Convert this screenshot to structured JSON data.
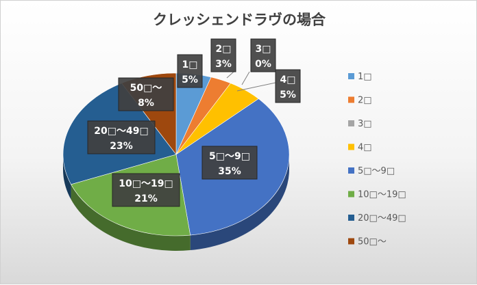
{
  "title": "クレッシェンドラヴの場合",
  "chart_data": {
    "type": "pie",
    "title": "クレッシェンドラヴの場合",
    "categories": [
      "1□",
      "2□",
      "3□",
      "4□",
      "5□～9□",
      "10□～19□",
      "20□～49□",
      "50□～"
    ],
    "values": [
      5,
      3,
      0,
      5,
      35,
      21,
      23,
      8
    ],
    "value_labels": [
      "5%",
      "3%",
      "0%",
      "5%",
      "35%",
      "21%",
      "23%",
      "8%"
    ],
    "colors": [
      "#5B9BD5",
      "#ED7D31",
      "#A5A5A5",
      "#FFC000",
      "#4472C4",
      "#70AD47",
      "#255E91",
      "#9E480E"
    ],
    "legend": "right",
    "style": "3d-exploded"
  }
}
